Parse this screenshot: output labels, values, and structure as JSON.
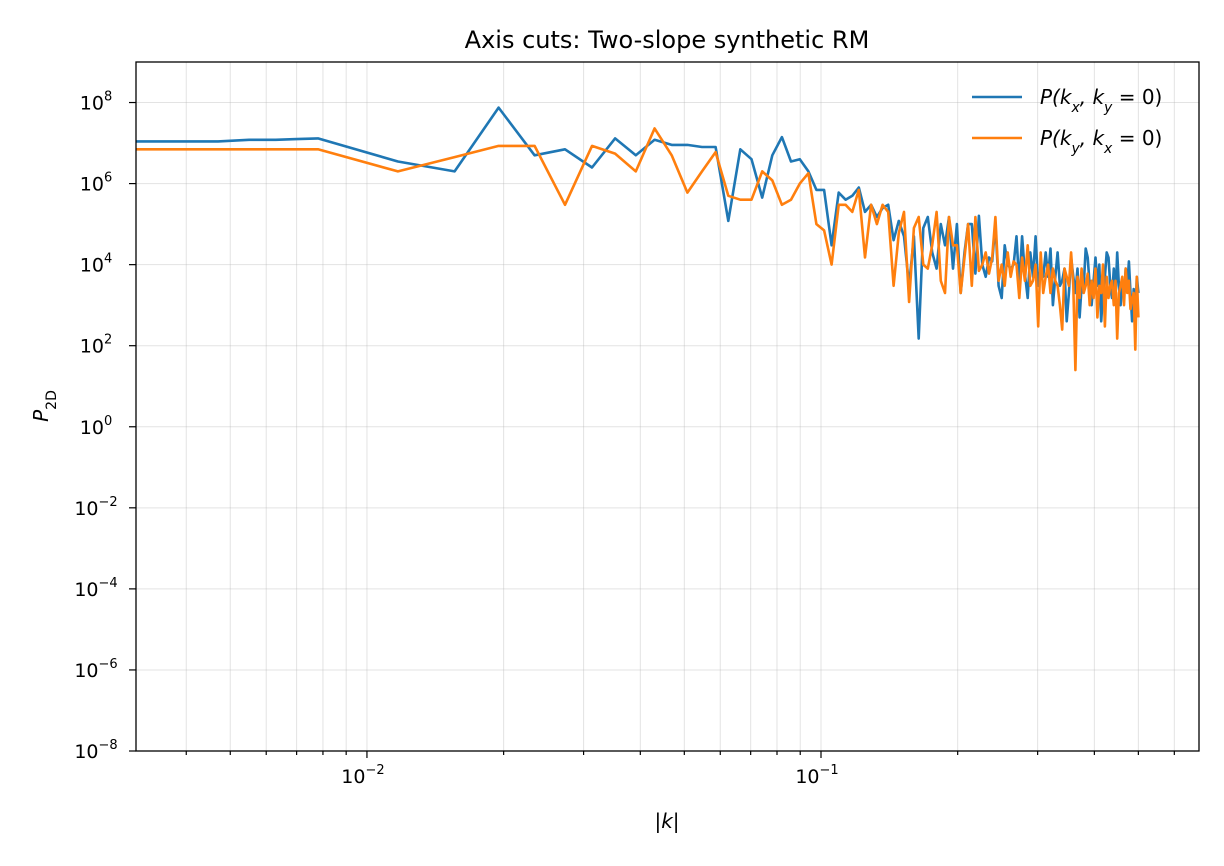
{
  "chart_data": {
    "type": "line",
    "title": "Axis cuts: Two-slope synthetic RM",
    "xlabel": "|k|",
    "ylabel": "P_2D",
    "xscale": "log",
    "yscale": "log",
    "xlim": [
      0.0031,
      0.68
    ],
    "ylim": [
      1e-08,
      1000000000.0
    ],
    "grid": true,
    "legend_position": "top-right",
    "x_ticks": [
      0.01,
      0.1
    ],
    "x_tick_labels": [
      "10^-2",
      "10^-1"
    ],
    "y_ticks": [
      1e-08,
      1e-06,
      0.0001,
      0.01,
      1,
      100,
      10000,
      1000000,
      100000000
    ],
    "y_tick_labels": [
      "10^-8",
      "10^-6",
      "10^-4",
      "10^-2",
      "10^0",
      "10^2",
      "10^4",
      "10^6",
      "10^8"
    ],
    "series": [
      {
        "name": "P(k_x, k_y = 0)",
        "color": "#1f77b4",
        "x": [
          0.0031,
          0.0039,
          0.0047,
          0.0055,
          0.0063,
          0.007,
          0.0078,
          0.0117,
          0.0156,
          0.0195,
          0.0234,
          0.0273,
          0.0313,
          0.0352,
          0.0391,
          0.043,
          0.0469,
          0.0508,
          0.0547,
          0.0586,
          0.0625,
          0.0664,
          0.0703,
          0.0742,
          0.0781,
          0.082,
          0.0859,
          0.0898,
          0.0938,
          0.0977,
          0.1016,
          0.1055,
          0.1094,
          0.1133,
          0.1172,
          0.1211,
          0.125,
          0.1289,
          0.1328,
          0.1367,
          0.1406,
          0.1445,
          0.1484,
          0.1523,
          0.1563,
          0.1602,
          0.1641,
          0.168,
          0.1719,
          0.1758,
          0.1797,
          0.1836,
          0.1875,
          0.1914,
          0.1953,
          0.1992,
          0.2031,
          0.207,
          0.2109,
          0.2148,
          0.2188,
          0.2227,
          0.2266,
          0.2305,
          0.2344,
          0.2383,
          0.2422,
          0.2461,
          0.25,
          0.2539,
          0.2578,
          0.2617,
          0.2656,
          0.2695,
          0.2734,
          0.2773,
          0.2813,
          0.2852,
          0.2891,
          0.293,
          0.2969,
          0.3008,
          0.3047,
          0.3086,
          0.3125,
          0.3164,
          0.3203,
          0.3242,
          0.3281,
          0.332,
          0.3359,
          0.3398,
          0.3438,
          0.3477,
          0.3516,
          0.3555,
          0.3594,
          0.3633,
          0.3672,
          0.3711,
          0.375,
          0.3789,
          0.3828,
          0.3867,
          0.3906,
          0.3945,
          0.3984,
          0.4023,
          0.4063,
          0.4102,
          0.4141,
          0.418,
          0.4219,
          0.4258,
          0.4297,
          0.4336,
          0.4375,
          0.4414,
          0.4453,
          0.4492,
          0.4531,
          0.457,
          0.4609,
          0.4648,
          0.4688,
          0.4727,
          0.4766,
          0.4805,
          0.4844,
          0.4883,
          0.4922,
          0.4961,
          0.5
        ],
        "y": [
          11000000.0,
          11000000.0,
          11000000.0,
          12000000.0,
          12000000.0,
          12500000.0,
          13000000.0,
          3500000.0,
          2000000.0,
          75000000.0,
          5000000.0,
          7000000.0,
          2500000.0,
          13000000.0,
          5000000.0,
          12000000.0,
          9000000.0,
          9000000.0,
          8000000.0,
          8000000.0,
          120000.0,
          7000000.0,
          4000000.0,
          450000.0,
          5000000.0,
          14000000.0,
          3500000.0,
          4000000.0,
          2000000.0,
          700000.0,
          700000.0,
          30000.0,
          600000.0,
          400000.0,
          500000.0,
          800000.0,
          200000.0,
          300000.0,
          150000.0,
          250000.0,
          300000.0,
          40000.0,
          120000.0,
          50000.0,
          3000.0,
          50000.0,
          150.0,
          80000.0,
          150000.0,
          20000.0,
          8000.0,
          100000.0,
          30000.0,
          150000.0,
          8000.0,
          100000.0,
          2000.0,
          20000.0,
          100000.0,
          100000.0,
          6000.0,
          160000.0,
          10000.0,
          5000.0,
          15000.0,
          12000.0,
          100000.0,
          3000.0,
          1500.0,
          30000.0,
          10000.0,
          8000.0,
          10000.0,
          50000.0,
          3000.0,
          50000.0,
          6000.0,
          1500.0,
          20000.0,
          5000.0,
          50000.0,
          3000.0,
          8000.0,
          5000.0,
          20000.0,
          5000.0,
          25000.0,
          1000.0,
          5000.0,
          20000.0,
          3000.0,
          4000.0,
          8000.0,
          400.0,
          2000.0,
          15000.0,
          5000.0,
          2000.0,
          8000.0,
          500.0,
          3000.0,
          3000.0,
          25000.0,
          15000.0,
          3000.0,
          1000.0,
          4000.0,
          15000.0,
          3000.0,
          10000.0,
          400.0,
          2000.0,
          5000.0,
          20000.0,
          15000.0,
          3000.0,
          1500.0,
          8000.0,
          1500.0,
          20000.0,
          3000.0,
          1000.0,
          4000.0,
          1500.0,
          8000.0,
          3000.0,
          12000.0,
          2000.0,
          400.0,
          2500.0,
          500.0,
          5000.0,
          2000.0
        ],
        "legend_label": {
          "base": "P(k",
          "sub1": "x",
          "mid": ", k",
          "sub2": "y",
          "tail": " = 0)"
        }
      },
      {
        "name": "P(k_y, k_x = 0)",
        "color": "#ff7f0e",
        "x": [
          0.0031,
          0.0039,
          0.0047,
          0.0055,
          0.0063,
          0.007,
          0.0078,
          0.0117,
          0.0156,
          0.0195,
          0.0234,
          0.0273,
          0.0313,
          0.0352,
          0.0391,
          0.043,
          0.0469,
          0.0508,
          0.0547,
          0.0586,
          0.0625,
          0.0664,
          0.0703,
          0.0742,
          0.0781,
          0.082,
          0.0859,
          0.0898,
          0.0938,
          0.0977,
          0.1016,
          0.1055,
          0.1094,
          0.1133,
          0.1172,
          0.1211,
          0.125,
          0.1289,
          0.1328,
          0.1367,
          0.1406,
          0.1445,
          0.1484,
          0.1523,
          0.1563,
          0.1602,
          0.1641,
          0.168,
          0.1719,
          0.1758,
          0.1797,
          0.1836,
          0.1875,
          0.1914,
          0.1953,
          0.1992,
          0.2031,
          0.207,
          0.2109,
          0.2148,
          0.2188,
          0.2227,
          0.2266,
          0.2305,
          0.2344,
          0.2383,
          0.2422,
          0.2461,
          0.25,
          0.2539,
          0.2578,
          0.2617,
          0.2656,
          0.2695,
          0.2734,
          0.2773,
          0.2813,
          0.2852,
          0.2891,
          0.293,
          0.2969,
          0.3008,
          0.3047,
          0.3086,
          0.3125,
          0.3164,
          0.3203,
          0.3242,
          0.3281,
          0.332,
          0.3359,
          0.3398,
          0.3438,
          0.3477,
          0.3516,
          0.3555,
          0.3594,
          0.3633,
          0.3672,
          0.3711,
          0.375,
          0.3789,
          0.3828,
          0.3867,
          0.3906,
          0.3945,
          0.3984,
          0.4023,
          0.4063,
          0.4102,
          0.4141,
          0.418,
          0.4219,
          0.4258,
          0.4297,
          0.4336,
          0.4375,
          0.4414,
          0.4453,
          0.4492,
          0.4531,
          0.457,
          0.4609,
          0.4648,
          0.4688,
          0.4727,
          0.4766,
          0.4805,
          0.4844,
          0.4883,
          0.4922,
          0.4961,
          0.5
        ],
        "y": [
          7000000.0,
          7000000.0,
          7000000.0,
          7000000.0,
          7000000.0,
          7000000.0,
          7000000.0,
          2000000.0,
          4500000.0,
          8500000.0,
          8500000.0,
          300000.0,
          8500000.0,
          5500000.0,
          2000000.0,
          23000000.0,
          5000000.0,
          600000.0,
          2000000.0,
          6000000.0,
          500000.0,
          400000.0,
          400000.0,
          2000000.0,
          1200000.0,
          300000.0,
          400000.0,
          1000000.0,
          1800000.0,
          100000.0,
          70000.0,
          10000.0,
          300000.0,
          300000.0,
          200000.0,
          700000.0,
          15000.0,
          300000.0,
          100000.0,
          300000.0,
          200000.0,
          3000.0,
          60000.0,
          200000.0,
          1200.0,
          80000.0,
          150000.0,
          10000.0,
          8000.0,
          30000.0,
          200000.0,
          4000.0,
          2000.0,
          150000.0,
          30000.0,
          30000.0,
          2000.0,
          15000.0,
          100000.0,
          3000.0,
          150000.0,
          7000.0,
          10000.0,
          20000.0,
          6000.0,
          15000.0,
          150000.0,
          4000.0,
          10000.0,
          3000.0,
          20000.0,
          5000.0,
          12000.0,
          10000.0,
          1500.0,
          15000.0,
          4000.0,
          30000.0,
          3000.0,
          4000.0,
          10000.0,
          300.0,
          20000.0,
          2000.0,
          5000.0,
          10000.0,
          2000.0,
          8000.0,
          4000.0,
          3000.0,
          1000.0,
          250.0,
          8000.0,
          5000.0,
          3000.0,
          20000.0,
          3000.0,
          25,
          5000.0,
          1500.0,
          8000.0,
          2000.0,
          3000.0,
          6000.0,
          1000.0,
          4000.0,
          1500.0,
          8000.0,
          500.0,
          3000.0,
          2000.0,
          10000.0,
          300.0,
          5000.0,
          1500.0,
          3000.0,
          4000.0,
          1000.0,
          4000.0,
          150.0,
          2000.0,
          3000.0,
          5000.0,
          1000.0,
          8000.0,
          2000.0,
          4000.0,
          800.0,
          1500.0,
          2000.0,
          80,
          5000.0,
          500.0
        ],
        "legend_label": {
          "base": "P(k",
          "sub1": "y",
          "mid": ", k",
          "sub2": "x",
          "tail": " = 0)"
        }
      }
    ]
  }
}
